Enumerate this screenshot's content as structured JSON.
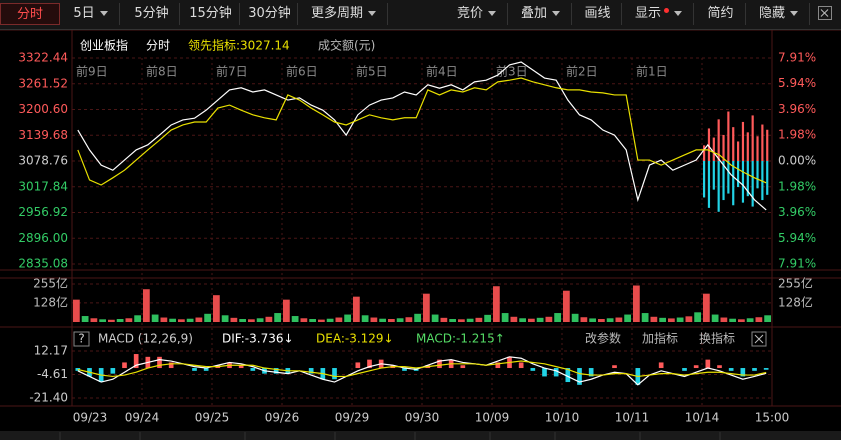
{
  "toolbar": {
    "left": [
      "分时",
      "5日",
      "5分钟",
      "15分钟",
      "30分钟",
      "更多周期"
    ],
    "right": [
      "竞价",
      "叠加",
      "画线",
      "显示",
      "简约",
      "隐藏"
    ]
  },
  "legend": {
    "name": "创业板指",
    "mode": "分时",
    "lead": "领先指标:3027.14",
    "amount": "成交额(元)"
  },
  "macd_header": {
    "help": "?",
    "title": "MACD (12,26,9)",
    "dif": "DIF:-3.736↓",
    "dea": "DEA:-3.129↓",
    "macd": "MACD:-1.215↑",
    "buttons": [
      "改参数",
      "加指标",
      "换指标"
    ]
  },
  "day_labels": [
    "前9日",
    "前8日",
    "前7日",
    "前6日",
    "前5日",
    "前4日",
    "前3日",
    "前2日",
    "前1日"
  ],
  "date_labels": [
    "09/23",
    "09/24",
    "09/25",
    "09/26",
    "09/29",
    "09/30",
    "10/09",
    "10/10",
    "10/11",
    "10/14",
    "15:00"
  ],
  "chart_data": [
    {
      "type": "line",
      "grid": true,
      "ylim": [
        2835.08,
        3322.44
      ],
      "yticks": [
        {
          "value": 3322.44,
          "label": "3322.44"
        },
        {
          "value": 3261.52,
          "label": "3261.52"
        },
        {
          "value": 3200.6,
          "label": "3200.60"
        },
        {
          "value": 3139.68,
          "label": "3139.68"
        },
        {
          "value": 3078.76,
          "label": "3078.76"
        },
        {
          "value": 3017.84,
          "label": "3017.84"
        },
        {
          "value": 2956.92,
          "label": "2956.92"
        },
        {
          "value": 2896,
          "label": "2896.00"
        },
        {
          "value": 2835.08,
          "label": "2835.08"
        }
      ],
      "y2lim": [
        -7.91,
        7.91
      ],
      "y2ticks": [
        {
          "value": 7.91,
          "label": "7.91%"
        },
        {
          "value": 5.94,
          "label": "5.94%"
        },
        {
          "value": 3.96,
          "label": "3.96%"
        },
        {
          "value": 1.98,
          "label": "1.98%"
        },
        {
          "value": 0,
          "label": "0.00%"
        },
        {
          "value": -1.98,
          "label": "1.98%"
        },
        {
          "value": -3.96,
          "label": "3.96%"
        },
        {
          "value": -5.94,
          "label": "5.94%"
        },
        {
          "value": -7.91,
          "label": "7.91%"
        }
      ],
      "tick_colors": {
        "up": "#ff5a5a",
        "flat": "#cccccc",
        "down": "#33cc66"
      },
      "series": [
        {
          "color": "#ffffff",
          "values": [
            3152,
            3105,
            3069,
            3057,
            3081,
            3105,
            3117,
            3140,
            3164,
            3176,
            3180,
            3199,
            3223,
            3247,
            3252,
            3242,
            3247,
            3235,
            3223,
            3228,
            3211,
            3199,
            3176,
            3140,
            3188,
            3211,
            3223,
            3228,
            3242,
            3235,
            3259,
            3251,
            3259,
            3247,
            3266,
            3270,
            3282,
            3306,
            3313,
            3294,
            3275,
            3270,
            3223,
            3188,
            3176,
            3152,
            3140,
            3105,
            2987,
            3069,
            3081,
            3057,
            3069,
            3081,
            3117,
            3081,
            3046,
            3022,
            2987,
            2963
          ]
        },
        {
          "color": "#e8e000",
          "values": [
            3105,
            3034,
            3022,
            3039,
            3057,
            3081,
            3105,
            3128,
            3152,
            3164,
            3171,
            3171,
            3204,
            3211,
            3199,
            3188,
            3181,
            3176,
            3235,
            3223,
            3204,
            3188,
            3171,
            3164,
            3176,
            3188,
            3181,
            3176,
            3181,
            3181,
            3247,
            3235,
            3247,
            3242,
            3252,
            3247,
            3266,
            3270,
            3275,
            3266,
            3259,
            3252,
            3247,
            3247,
            3242,
            3240,
            3235,
            3235,
            3081,
            3081,
            3069,
            3081,
            3093,
            3105,
            3105,
            3093,
            3069,
            3053,
            3039,
            3027.14
          ]
        },
        {
          "type": "bar",
          "axis": "y2",
          "color": "#ff5a5a",
          "values": [
            1.2,
            2.5,
            1.8,
            3.2,
            2.0,
            3.8,
            2.6,
            1.5,
            3.0,
            2.2,
            3.5,
            1.9,
            2.8,
            2.4
          ]
        },
        {
          "type": "bar",
          "axis": "y2",
          "color": "#22d3e6",
          "values": [
            -2.8,
            -3.6,
            -2.2,
            -3.9,
            -3.0,
            -2.5,
            -3.4,
            -2.0,
            -3.2,
            -2.7,
            -3.5,
            -2.1,
            -3.0,
            -2.6
          ]
        }
      ]
    },
    {
      "type": "bar",
      "grid": true,
      "ylim": [
        0,
        255
      ],
      "yticks": [
        {
          "value": 255,
          "label": "255亿"
        },
        {
          "value": 128,
          "label": "128亿"
        }
      ],
      "colors": [
        "#e84c4c",
        "#2fbf5f"
      ],
      "values": [
        150,
        40,
        25,
        18,
        15,
        20,
        25,
        45,
        220,
        50,
        30,
        22,
        18,
        22,
        30,
        55,
        180,
        45,
        28,
        20,
        18,
        25,
        35,
        60,
        150,
        40,
        25,
        20,
        16,
        22,
        30,
        50,
        170,
        45,
        30,
        22,
        20,
        25,
        32,
        55,
        190,
        50,
        28,
        20,
        18,
        22,
        28,
        48,
        240,
        60,
        35,
        25,
        22,
        28,
        35,
        60,
        210,
        55,
        32,
        24,
        20,
        25,
        30,
        50,
        245,
        60,
        35,
        28,
        24,
        30,
        38,
        65,
        190,
        50,
        30,
        22,
        18,
        25,
        32,
        45
      ]
    },
    {
      "type": "macd",
      "grid": true,
      "ylim": [
        -26.4,
        16.45
      ],
      "yticks": [
        {
          "value": 12.17,
          "label": "12.17"
        },
        -4.61,
        {
          "value": -21.4,
          "label": "-21.40"
        }
      ],
      "series": [
        {
          "color": "#ffffff",
          "values": [
            -2,
            -6,
            -10,
            -8,
            -3,
            2,
            4,
            6,
            5,
            3,
            1,
            0,
            2,
            4,
            3,
            1,
            -2,
            -3,
            -4,
            -2,
            -5,
            -8,
            -10,
            -6,
            -2,
            1,
            3,
            2,
            0,
            -1,
            2,
            5,
            6,
            4,
            3,
            2,
            5,
            8,
            7,
            3,
            0,
            -2,
            -6,
            -10,
            -8,
            -5,
            -3,
            -4,
            -12,
            -5,
            -2,
            -4,
            -6,
            -3,
            0,
            -2,
            -5,
            -8,
            -6,
            -3.736
          ]
        },
        {
          "color": "#e8e000",
          "values": [
            -1,
            -3,
            -5,
            -6,
            -5,
            -3,
            0,
            2,
            3,
            3,
            2,
            1,
            1,
            2,
            2,
            2,
            0,
            -1,
            -2,
            -2,
            -3,
            -4,
            -6,
            -6,
            -4,
            -2,
            0,
            1,
            1,
            0,
            1,
            2,
            3,
            3,
            3,
            2,
            3,
            4,
            5,
            4,
            3,
            1,
            -1,
            -4,
            -5,
            -5,
            -4,
            -4,
            -6,
            -5,
            -4,
            -4,
            -5,
            -4,
            -3,
            -3,
            -4,
            -5,
            -5,
            -3.129
          ]
        },
        {
          "type": "bar",
          "colors": [
            "#ff5a5a",
            "#22d3e6"
          ],
          "values": [
            -2,
            -6,
            -10,
            -4,
            4,
            10,
            8,
            8,
            4,
            0,
            -2,
            -2,
            2,
            4,
            2,
            -2,
            -4,
            -4,
            -4,
            0,
            -4,
            -8,
            -8,
            0,
            4,
            6,
            6,
            2,
            -2,
            -2,
            2,
            6,
            6,
            2,
            0,
            0,
            4,
            8,
            4,
            -2,
            -6,
            -6,
            -10,
            -12,
            -6,
            0,
            2,
            0,
            -12,
            0,
            4,
            0,
            -2,
            2,
            6,
            2,
            -2,
            -6,
            -2,
            -1.215
          ]
        }
      ]
    }
  ]
}
